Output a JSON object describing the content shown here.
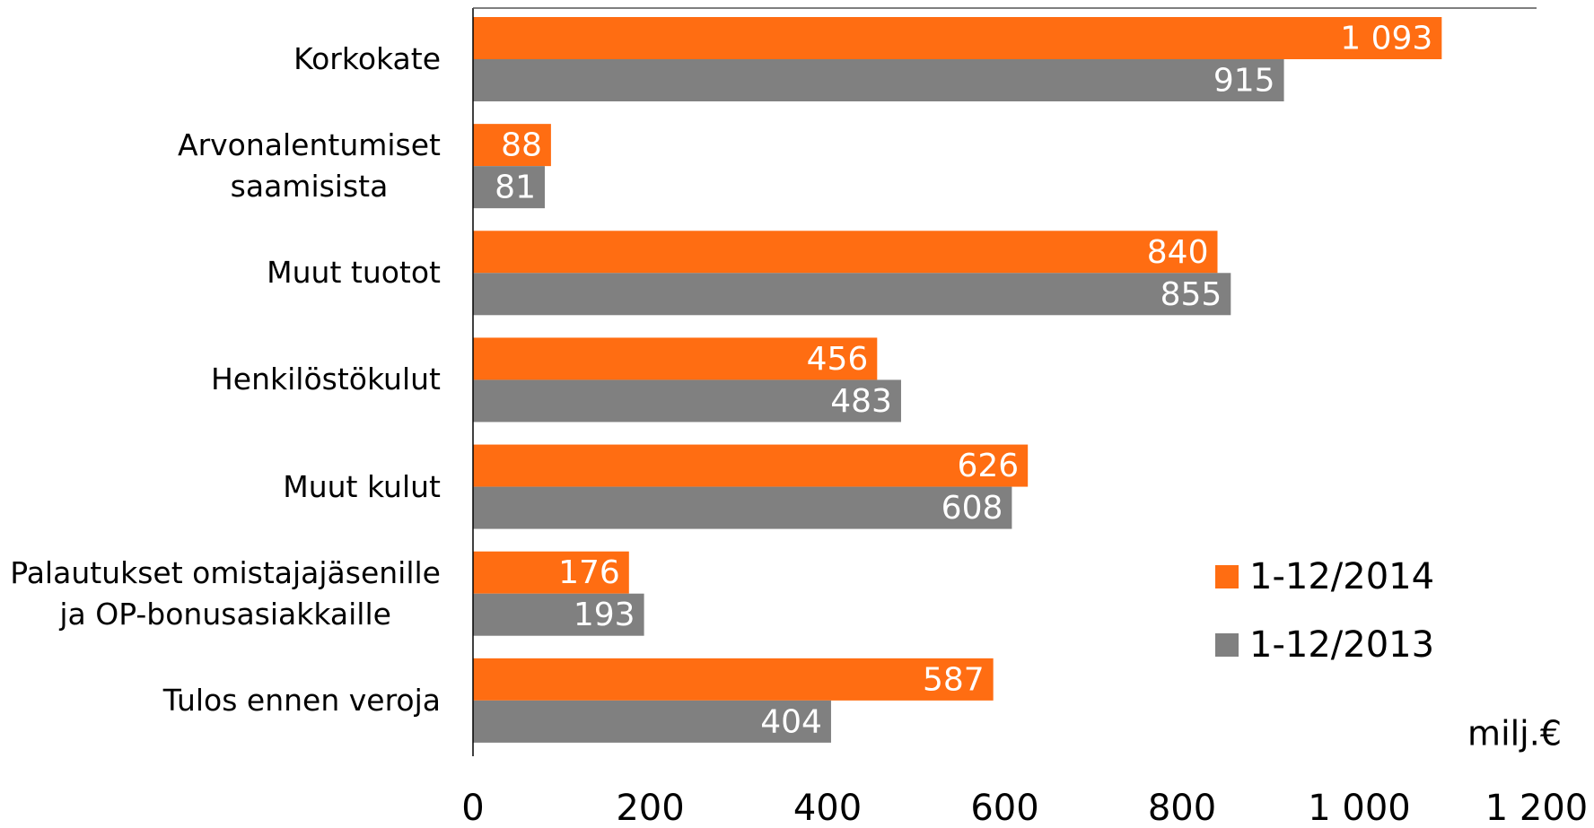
{
  "chart_data": {
    "type": "bar",
    "orientation": "horizontal",
    "categories": [
      "Korkokate",
      "Arvonalentumiset\nsaamisista",
      "Muut tuotot",
      "Henkilöstökulut",
      "Muut kulut",
      "Palautukset omistajajäsenille\nja OP-bonusasiakkaille",
      "Tulos ennen veroja"
    ],
    "series": [
      {
        "name": "1-12/2014",
        "color": "#ff6d12",
        "values": [
          1093,
          88,
          840,
          456,
          626,
          176,
          587
        ],
        "value_labels": [
          "1 093",
          "88",
          "840",
          "456",
          "626",
          "176",
          "587"
        ]
      },
      {
        "name": "1-12/2013",
        "color": "#808080",
        "values": [
          915,
          81,
          855,
          483,
          608,
          193,
          404
        ],
        "value_labels": [
          "915",
          "81",
          "855",
          "483",
          "608",
          "193",
          "404"
        ]
      }
    ],
    "xlim": [
      0,
      1200
    ],
    "xticks": [
      0,
      200,
      400,
      600,
      800,
      {
        "value": 1000,
        "label": "1 000"
      },
      {
        "value": 1200,
        "label": "1 200"
      }
    ],
    "unit_label": "milj.€",
    "legend": "right"
  }
}
